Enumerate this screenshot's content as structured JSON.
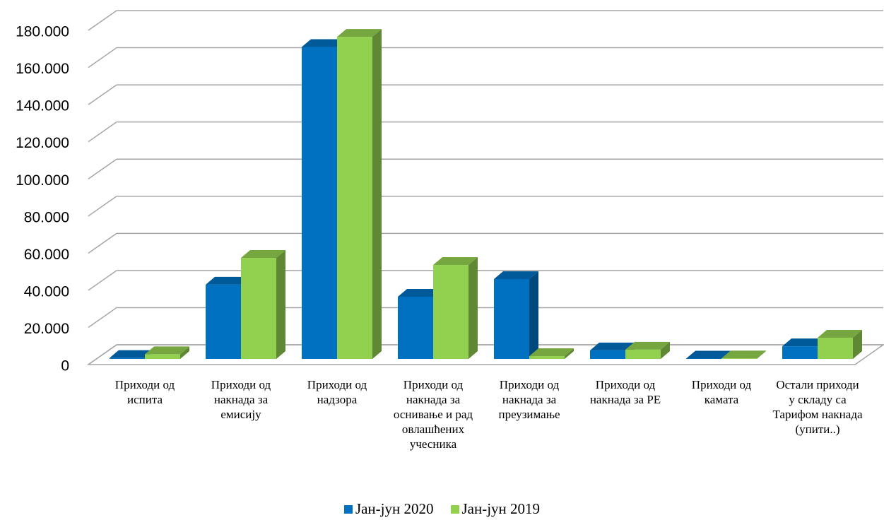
{
  "chart_data": {
    "type": "bar3d",
    "categories": [
      "Приходи од испита",
      "Приходи од накнада за емисију",
      "Приходи од надзора",
      "Приходи од накнада за оснивање и рад овлашћених учесника",
      "Приходи од накнада за преузимање",
      "Приходи од накнада за РЕ",
      "Приходи од камата",
      "Остали приходи у складу са Тарифом накнада (упити..)"
    ],
    "series": [
      {
        "name": "Јан-јун 2020",
        "color": "#0070c0",
        "values": [
          500,
          40000,
          168000,
          33500,
          43000,
          4600,
          200,
          6800
        ]
      },
      {
        "name": "Јан-јун 2019",
        "color": "#92d050",
        "values": [
          2500,
          54400,
          173500,
          50600,
          1500,
          5000,
          300,
          11400
        ]
      }
    ],
    "ylim": [
      0,
      180000
    ],
    "yticks": [
      0,
      {
        "value": 20000,
        "label": "20.000"
      },
      {
        "value": 40000,
        "label": "40.000"
      },
      {
        "value": 60000,
        "label": "60.000"
      },
      {
        "value": 80000,
        "label": "80.000"
      },
      {
        "value": 100000,
        "label": "100.000"
      },
      {
        "value": 120000,
        "label": "120.000"
      },
      {
        "value": 140000,
        "label": "140.000"
      },
      {
        "value": 160000,
        "label": "160.000"
      },
      {
        "value": 180000,
        "label": "180.000"
      }
    ],
    "grid": true,
    "legend": "bottom"
  }
}
